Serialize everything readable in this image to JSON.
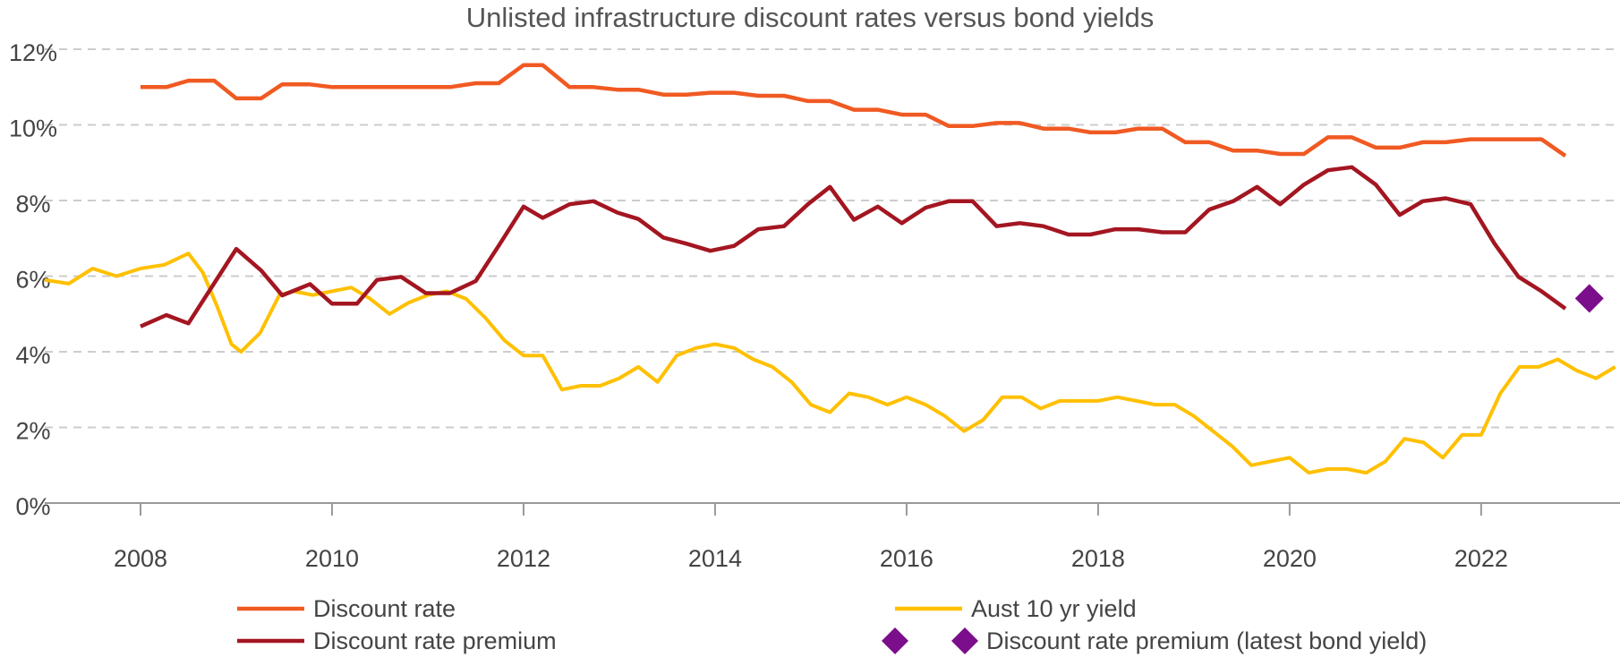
{
  "chart_data": {
    "type": "line",
    "title": "Unlisted infrastructure discount rates versus bond yields",
    "xlim": [
      2007.0,
      2023.45
    ],
    "xticks": [
      2008,
      2010,
      2012,
      2014,
      2016,
      2018,
      2020,
      2022
    ],
    "ylim": [
      0,
      12
    ],
    "yticks": [
      {
        "value": 0,
        "label": "0%"
      },
      {
        "value": 2,
        "label": "2%"
      },
      {
        "value": 4,
        "label": "4%"
      },
      {
        "value": 6,
        "label": "6%"
      },
      {
        "value": 8,
        "label": "8%"
      },
      {
        "value": 10,
        "label": "10%"
      },
      {
        "value": 12,
        "label": "12%"
      }
    ],
    "grid": true,
    "series": [
      {
        "name": "Discount rate",
        "color": "#f05a22",
        "x": [
          2008.0,
          2008.27,
          2008.5,
          2008.77,
          2009.0,
          2009.26,
          2009.48,
          2009.77,
          2010.0,
          2011.23,
          2011.5,
          2011.74,
          2012.0,
          2012.2,
          2012.48,
          2012.73,
          2012.98,
          2013.2,
          2013.46,
          2013.7,
          2013.95,
          2014.2,
          2014.45,
          2014.72,
          2014.97,
          2015.2,
          2015.45,
          2015.7,
          2015.95,
          2016.2,
          2016.44,
          2016.69,
          2016.94,
          2017.18,
          2017.43,
          2017.69,
          2017.92,
          2018.18,
          2018.42,
          2018.67,
          2018.91,
          2019.16,
          2019.41,
          2019.66,
          2019.9,
          2020.15,
          2020.4,
          2020.65,
          2020.9,
          2021.15,
          2021.39,
          2021.63,
          2021.89,
          2022.63,
          2022.88
        ],
        "values": [
          11.0,
          11.0,
          11.17,
          11.17,
          10.7,
          10.7,
          11.07,
          11.07,
          11.0,
          11.0,
          11.1,
          11.1,
          11.58,
          11.58,
          11.0,
          11.0,
          10.93,
          10.93,
          10.8,
          10.8,
          10.85,
          10.85,
          10.77,
          10.77,
          10.63,
          10.63,
          10.4,
          10.4,
          10.27,
          10.27,
          9.97,
          9.97,
          10.05,
          10.05,
          9.9,
          9.9,
          9.8,
          9.8,
          9.9,
          9.9,
          9.54,
          9.54,
          9.32,
          9.32,
          9.23,
          9.23,
          9.67,
          9.67,
          9.4,
          9.4,
          9.54,
          9.54,
          9.62,
          9.62,
          9.18
        ]
      },
      {
        "name": "Discount rate premium",
        "color": "#a31621",
        "x": [
          2008.0,
          2008.27,
          2008.5,
          2009.0,
          2009.26,
          2009.48,
          2009.77,
          2010.0,
          2010.26,
          2010.47,
          2010.72,
          2010.98,
          2011.23,
          2011.5,
          2011.74,
          2012.0,
          2012.2,
          2012.48,
          2012.73,
          2012.98,
          2013.2,
          2013.46,
          2013.7,
          2013.95,
          2014.2,
          2014.45,
          2014.72,
          2014.97,
          2015.2,
          2015.45,
          2015.7,
          2015.95,
          2016.2,
          2016.44,
          2016.69,
          2016.94,
          2017.18,
          2017.43,
          2017.69,
          2017.92,
          2018.18,
          2018.42,
          2018.67,
          2018.91,
          2019.16,
          2019.41,
          2019.66,
          2019.9,
          2020.15,
          2020.4,
          2020.65,
          2020.9,
          2021.15,
          2021.39,
          2021.63,
          2021.89,
          2022.14,
          2022.39,
          2022.63,
          2022.88
        ],
        "values": [
          4.67,
          4.97,
          4.75,
          6.72,
          6.15,
          5.49,
          5.79,
          5.27,
          5.27,
          5.9,
          5.98,
          5.55,
          5.55,
          5.87,
          6.8,
          7.84,
          7.54,
          7.9,
          7.98,
          7.68,
          7.51,
          7.02,
          6.86,
          6.67,
          6.8,
          7.24,
          7.32,
          7.9,
          8.36,
          7.49,
          7.84,
          7.4,
          7.81,
          7.98,
          7.98,
          7.32,
          7.4,
          7.32,
          7.1,
          7.1,
          7.24,
          7.24,
          7.16,
          7.16,
          7.76,
          7.98,
          8.36,
          7.9,
          8.42,
          8.8,
          8.88,
          8.42,
          7.62,
          7.98,
          8.06,
          7.9,
          6.86,
          5.98,
          5.6,
          5.14
        ]
      },
      {
        "name": "Aust 10 yr yield",
        "color": "#ffc000",
        "x": [
          2007.0,
          2007.25,
          2007.5,
          2007.75,
          2008.0,
          2008.25,
          2008.5,
          2008.65,
          2008.8,
          2008.95,
          2009.05,
          2009.25,
          2009.45,
          2009.6,
          2009.8,
          2010.0,
          2010.2,
          2010.4,
          2010.6,
          2010.8,
          2011.0,
          2011.2,
          2011.4,
          2011.6,
          2011.8,
          2012.0,
          2012.2,
          2012.4,
          2012.6,
          2012.8,
          2013.0,
          2013.2,
          2013.4,
          2013.6,
          2013.8,
          2014.0,
          2014.2,
          2014.4,
          2014.6,
          2014.8,
          2015.0,
          2015.2,
          2015.4,
          2015.6,
          2015.8,
          2016.0,
          2016.2,
          2016.4,
          2016.6,
          2016.8,
          2017.0,
          2017.2,
          2017.4,
          2017.6,
          2017.8,
          2018.0,
          2018.2,
          2018.4,
          2018.6,
          2018.8,
          2019.0,
          2019.2,
          2019.4,
          2019.6,
          2019.8,
          2020.0,
          2020.2,
          2020.4,
          2020.6,
          2020.8,
          2021.0,
          2021.2,
          2021.4,
          2021.6,
          2021.8,
          2022.0,
          2022.2,
          2022.4,
          2022.6,
          2022.8,
          2023.0,
          2023.2,
          2023.4
        ],
        "values": [
          5.9,
          5.8,
          6.2,
          6.0,
          6.2,
          6.3,
          6.6,
          6.1,
          5.2,
          4.2,
          4.0,
          4.5,
          5.5,
          5.6,
          5.5,
          5.6,
          5.7,
          5.4,
          5.0,
          5.3,
          5.5,
          5.6,
          5.4,
          4.9,
          4.3,
          3.9,
          3.9,
          3.0,
          3.1,
          3.1,
          3.3,
          3.6,
          3.2,
          3.9,
          4.1,
          4.2,
          4.1,
          3.8,
          3.6,
          3.2,
          2.6,
          2.4,
          2.9,
          2.8,
          2.6,
          2.8,
          2.6,
          2.3,
          1.9,
          2.2,
          2.8,
          2.8,
          2.5,
          2.7,
          2.7,
          2.7,
          2.8,
          2.7,
          2.6,
          2.6,
          2.3,
          1.9,
          1.5,
          1.0,
          1.1,
          1.2,
          0.8,
          0.9,
          0.9,
          0.8,
          1.1,
          1.7,
          1.6,
          1.2,
          1.8,
          1.8,
          2.9,
          3.6,
          3.6,
          3.8,
          3.5,
          3.3,
          3.6
        ]
      },
      {
        "name": "Discount rate premium (latest bond yield)",
        "color": "#7b0e8a",
        "marker": "diamond",
        "x": [
          2023.13
        ],
        "values": [
          5.41
        ]
      }
    ]
  }
}
